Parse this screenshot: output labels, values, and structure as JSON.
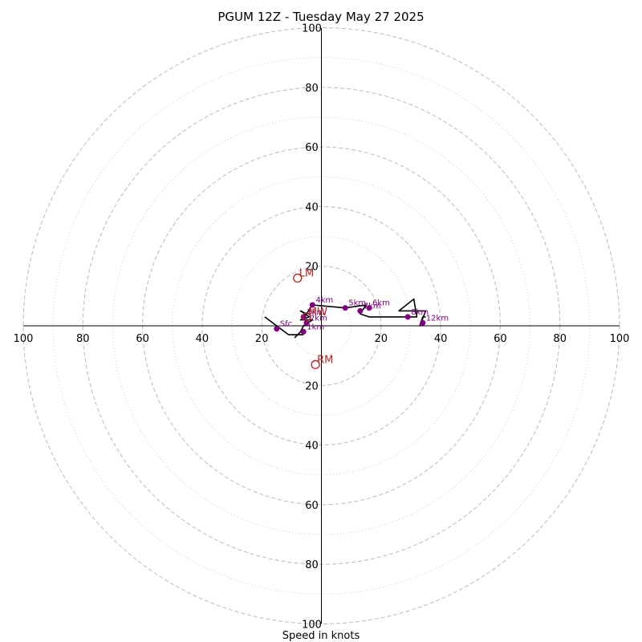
{
  "chart_data": {
    "type": "hodograph",
    "title": "PGUM 12Z - Tuesday May 27 2025",
    "xlabel": "Speed in knots",
    "ring_max": 100,
    "rings_major": [
      20,
      40,
      60,
      80,
      100
    ],
    "rings_minor": [
      10,
      30,
      50,
      70,
      90
    ],
    "x_tick_labels": [
      "100",
      "80",
      "60",
      "40",
      "20",
      "20",
      "40",
      "60",
      "80",
      "100"
    ],
    "x_tick_values": [
      -100,
      -80,
      -60,
      -40,
      -20,
      20,
      40,
      60,
      80,
      100
    ],
    "y_tick_labels": [
      "100",
      "80",
      "60",
      "40",
      "20",
      "20",
      "40",
      "60",
      "80",
      "100"
    ],
    "y_tick_values": [
      100,
      80,
      60,
      40,
      20,
      -20,
      -40,
      -60,
      -80,
      -100
    ],
    "grid": true,
    "hodograph_line": {
      "color": "#000000",
      "points": [
        [
          -9,
          -4
        ],
        [
          -7,
          -2
        ],
        [
          -6,
          0
        ],
        [
          -3,
          2
        ],
        [
          -7,
          2
        ],
        [
          -4,
          3
        ],
        [
          -7,
          5
        ],
        [
          -5,
          4
        ],
        [
          -3,
          7
        ],
        [
          8,
          6
        ],
        [
          15,
          7
        ],
        [
          13,
          4
        ],
        [
          16,
          3
        ],
        [
          32,
          3
        ],
        [
          31,
          9
        ],
        [
          26,
          5
        ],
        [
          35,
          5
        ],
        [
          33,
          0
        ],
        [
          34,
          3
        ],
        [
          35,
          3
        ]
      ]
    },
    "wind_profile_line": {
      "color": "#000000",
      "points": [
        [
          -19,
          3
        ],
        [
          -15,
          0
        ],
        [
          -11,
          -3
        ],
        [
          -6,
          -3
        ]
      ]
    },
    "height_points": {
      "color": "#800080",
      "points": [
        {
          "u": -15,
          "v": -1,
          "label": "Sfc"
        },
        {
          "u": -6,
          "v": -2,
          "label": "1km"
        },
        {
          "u": -5,
          "v": 1,
          "label": "2km"
        },
        {
          "u": -6,
          "v": 3,
          "label": "3km"
        },
        {
          "u": -3,
          "v": 7,
          "label": "4km"
        },
        {
          "u": 8,
          "v": 6,
          "label": "5km"
        },
        {
          "u": 16,
          "v": 6,
          "label": "6km"
        },
        {
          "u": 13,
          "v": 5,
          "label": "7km"
        },
        {
          "u": 29,
          "v": 3,
          "label": "8km"
        },
        {
          "u": 34,
          "v": 1,
          "label": "12km"
        }
      ]
    },
    "storm_motion_markers": {
      "color": "#b22222",
      "points": [
        {
          "u": -8,
          "v": 16,
          "label": "LM"
        },
        {
          "u": -2,
          "v": -13,
          "label": "RM"
        },
        {
          "u": -5,
          "v": 3,
          "label": "MW"
        }
      ]
    }
  }
}
